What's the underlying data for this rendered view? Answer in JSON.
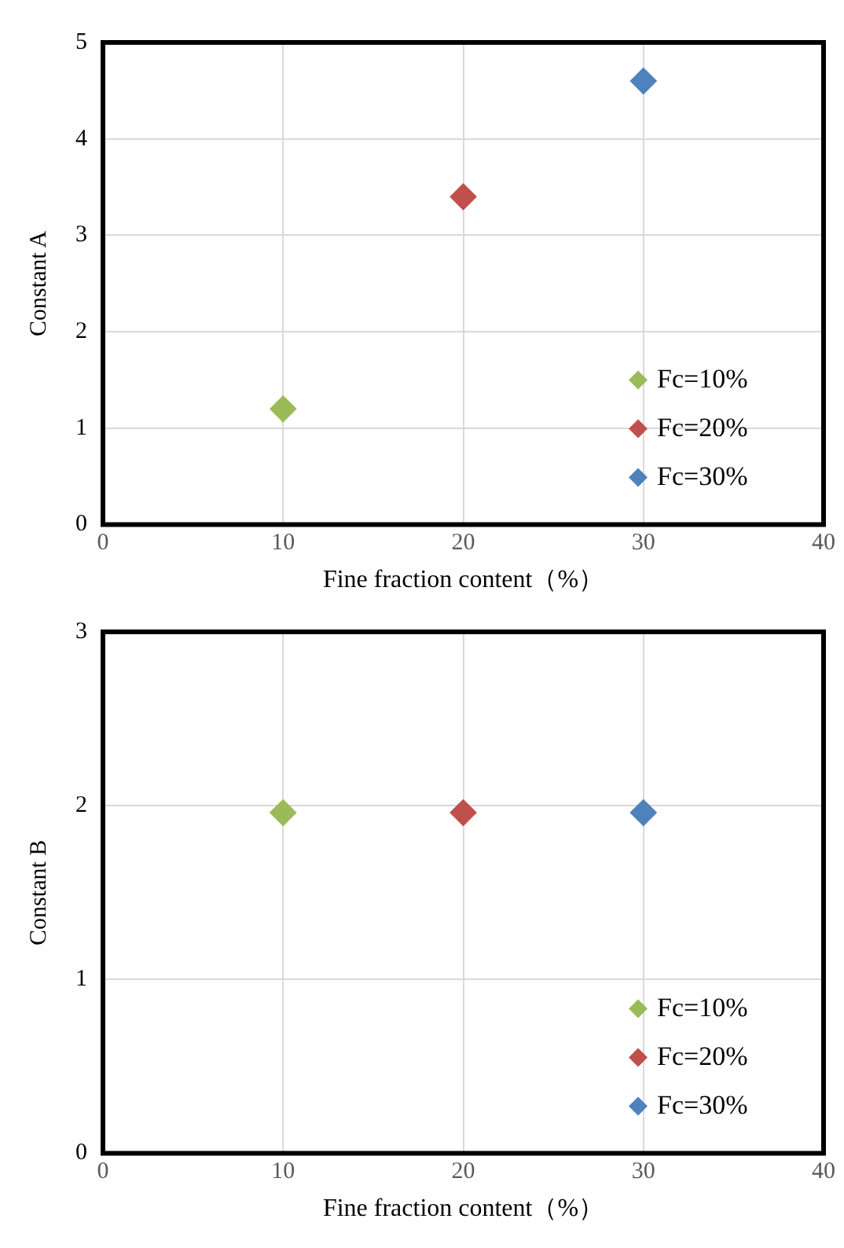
{
  "chart_data": [
    {
      "type": "scatter",
      "xlabel": "Fine fraction content（%）",
      "ylabel": "Constant A",
      "xlim": [
        0,
        40
      ],
      "xticks": [
        0,
        10,
        20,
        30,
        40
      ],
      "ylim": [
        0,
        5
      ],
      "yticks": [
        0,
        1,
        2,
        3,
        4,
        5
      ],
      "grid": true,
      "legend": "bottom right",
      "marker": "diamond",
      "series": [
        {
          "name": "Fc=10%",
          "color": "#9bbb59",
          "x": [
            10
          ],
          "values": [
            1.2
          ]
        },
        {
          "name": "Fc=20%",
          "color": "#c0504d",
          "x": [
            20
          ],
          "values": [
            3.4
          ]
        },
        {
          "name": "Fc=30%",
          "color": "#4f81bd",
          "x": [
            30
          ],
          "values": [
            4.6
          ]
        }
      ]
    },
    {
      "type": "scatter",
      "xlabel": "Fine fraction content（%）",
      "ylabel": "Constant B",
      "xlim": [
        0,
        40
      ],
      "xticks": [
        0,
        10,
        20,
        30,
        40
      ],
      "ylim": [
        0,
        3
      ],
      "yticks": [
        0,
        1,
        2,
        3
      ],
      "grid": true,
      "legend": "bottom right",
      "marker": "diamond",
      "series": [
        {
          "name": "Fc=10%",
          "color": "#9bbb59",
          "x": [
            10
          ],
          "values": [
            1.96
          ]
        },
        {
          "name": "Fc=20%",
          "color": "#c0504d",
          "x": [
            20
          ],
          "values": [
            1.96
          ]
        },
        {
          "name": "Fc=30%",
          "color": "#4f81bd",
          "x": [
            30
          ],
          "values": [
            1.96
          ]
        }
      ]
    }
  ]
}
